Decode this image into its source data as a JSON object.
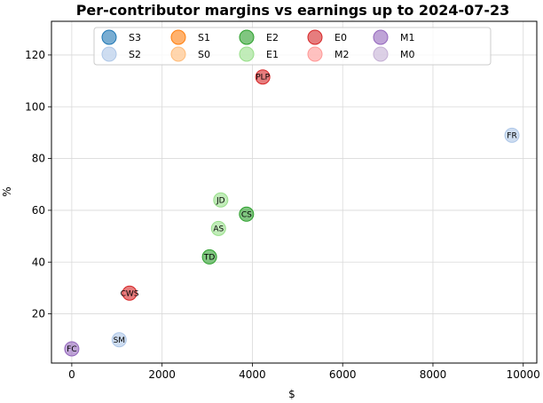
{
  "chart_data": {
    "type": "scatter",
    "title": "Per-contributor margins vs earnings up to 2024-07-23",
    "xlabel": "$",
    "ylabel": "%",
    "xlim": [
      -450,
      10300
    ],
    "ylim": [
      1,
      133
    ],
    "xticks": [
      0,
      2000,
      4000,
      6000,
      8000,
      10000
    ],
    "yticks": [
      20,
      40,
      60,
      80,
      100,
      120
    ],
    "grid": true,
    "legend_position": "top",
    "series": [
      {
        "name": "S3",
        "color": "#1f77b4",
        "points": []
      },
      {
        "name": "S2",
        "color": "#aec7e8",
        "points": [
          {
            "label": "FR",
            "x": 9750,
            "y": 89
          },
          {
            "label": "SM",
            "x": 1050,
            "y": 10
          }
        ]
      },
      {
        "name": "S1",
        "color": "#ff7f0e",
        "points": []
      },
      {
        "name": "S0",
        "color": "#ffbb78",
        "points": []
      },
      {
        "name": "E2",
        "color": "#2ca02c",
        "points": [
          {
            "label": "CS",
            "x": 3870,
            "y": 58.5
          },
          {
            "label": "TD",
            "x": 3050,
            "y": 42
          }
        ]
      },
      {
        "name": "E1",
        "color": "#98df8a",
        "points": [
          {
            "label": "JD",
            "x": 3300,
            "y": 64
          },
          {
            "label": "AS",
            "x": 3250,
            "y": 53
          }
        ]
      },
      {
        "name": "E0",
        "color": "#d62728",
        "points": [
          {
            "label": "PLP",
            "x": 4230,
            "y": 111.5
          },
          {
            "label": "CWS",
            "x": 1280,
            "y": 28
          }
        ]
      },
      {
        "name": "M2",
        "color": "#ff9896",
        "points": []
      },
      {
        "name": "M1",
        "color": "#9467bd",
        "points": [
          {
            "label": "FC",
            "x": 0,
            "y": 6.5
          }
        ]
      },
      {
        "name": "M0",
        "color": "#c5b0d5",
        "points": []
      }
    ]
  }
}
